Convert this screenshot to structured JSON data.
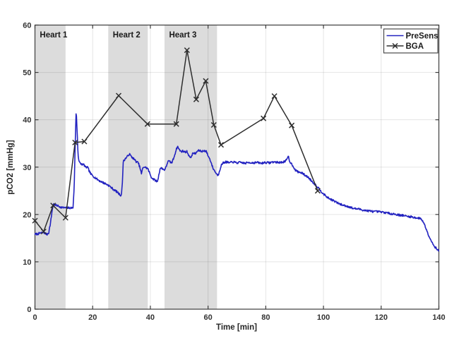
{
  "figure": {
    "background": "#ffffff"
  },
  "chart_data": {
    "type": "line",
    "title": "",
    "xlabel": "Time [min]",
    "ylabel": "pCO2 [mmHg]",
    "xlim": [
      0,
      140
    ],
    "ylim": [
      0,
      60
    ],
    "xticks": [
      0,
      20,
      40,
      60,
      80,
      100,
      120,
      140
    ],
    "yticks": [
      0,
      10,
      20,
      30,
      40,
      50,
      60
    ],
    "grid": true,
    "legend_position": "top-right",
    "band_color": "#dcdcdc",
    "grid_color": "rgba(0,0,0,0.10)",
    "axis_color": "#3c3c3c",
    "bands": [
      {
        "label": "Heart 1",
        "x_start": 0.1,
        "x_end": 10.6
      },
      {
        "label": "Heart 2",
        "x_start": 25.4,
        "x_end": 39.1
      },
      {
        "label": "Heart 3",
        "x_start": 44.9,
        "x_end": 63.1
      }
    ],
    "noise_amplitude": 0.22,
    "noise_seed": 7,
    "series": [
      {
        "name": "PreSens",
        "color": "#2222c0",
        "marker": "none",
        "style": "noisy-line",
        "points": [
          [
            0,
            15.8
          ],
          [
            1,
            15.9
          ],
          [
            2,
            16.1
          ],
          [
            3,
            16.2
          ],
          [
            3.6,
            16.0
          ],
          [
            4.2,
            15.8
          ],
          [
            4.8,
            16.2
          ],
          [
            5.4,
            18.3
          ],
          [
            6.0,
            21.0
          ],
          [
            6.4,
            22.2
          ],
          [
            6.9,
            22.0
          ],
          [
            7.6,
            21.9
          ],
          [
            8.4,
            21.7
          ],
          [
            9.2,
            21.5
          ],
          [
            10.2,
            21.4
          ],
          [
            11.2,
            21.4
          ],
          [
            12.2,
            21.4
          ],
          [
            13.2,
            21.4
          ],
          [
            13.6,
            26.0
          ],
          [
            14.0,
            36.0
          ],
          [
            14.3,
            42.2
          ],
          [
            14.6,
            38.0
          ],
          [
            14.9,
            33.0
          ],
          [
            15.2,
            31.4
          ],
          [
            15.6,
            30.8
          ],
          [
            16.2,
            30.6
          ],
          [
            17.0,
            30.5
          ],
          [
            17.6,
            29.9
          ],
          [
            18.2,
            30.0
          ],
          [
            18.8,
            29.2
          ],
          [
            19.4,
            28.5
          ],
          [
            20.0,
            28.2
          ],
          [
            20.6,
            27.9
          ],
          [
            21.4,
            27.5
          ],
          [
            22.4,
            27.1
          ],
          [
            23.4,
            26.8
          ],
          [
            24.4,
            26.5
          ],
          [
            25.4,
            26.2
          ],
          [
            26.4,
            25.7
          ],
          [
            27.4,
            25.2
          ],
          [
            28.4,
            24.8
          ],
          [
            29.2,
            24.3
          ],
          [
            29.9,
            24.0
          ],
          [
            30.3,
            26.5
          ],
          [
            30.6,
            31.2
          ],
          [
            31.2,
            31.7
          ],
          [
            32.0,
            32.2
          ],
          [
            32.7,
            32.8
          ],
          [
            33.4,
            32.2
          ],
          [
            34.2,
            31.8
          ],
          [
            35.0,
            31.2
          ],
          [
            35.8,
            30.9
          ],
          [
            36.4,
            29.9
          ],
          [
            36.9,
            28.6
          ],
          [
            37.3,
            29.6
          ],
          [
            37.7,
            30.1
          ],
          [
            38.4,
            29.9
          ],
          [
            39.1,
            29.7
          ],
          [
            39.7,
            28.8
          ],
          [
            40.4,
            27.8
          ],
          [
            41.2,
            27.4
          ],
          [
            42.0,
            27.1
          ],
          [
            42.4,
            26.9
          ],
          [
            42.9,
            28.2
          ],
          [
            43.4,
            29.8
          ],
          [
            44.2,
            29.7
          ],
          [
            44.8,
            29.4
          ],
          [
            45.4,
            29.9
          ],
          [
            46.1,
            31.3
          ],
          [
            46.8,
            31.1
          ],
          [
            47.4,
            30.9
          ],
          [
            48.1,
            31.9
          ],
          [
            48.8,
            33.4
          ],
          [
            49.4,
            34.4
          ],
          [
            50.0,
            33.7
          ],
          [
            50.6,
            33.3
          ],
          [
            51.3,
            33.4
          ],
          [
            52.0,
            33.2
          ],
          [
            52.7,
            33.3
          ],
          [
            53.4,
            32.4
          ],
          [
            53.9,
            31.9
          ],
          [
            54.5,
            32.7
          ],
          [
            55.0,
            33.0
          ],
          [
            55.6,
            32.8
          ],
          [
            56.3,
            33.4
          ],
          [
            57.0,
            33.5
          ],
          [
            57.8,
            33.3
          ],
          [
            58.6,
            33.5
          ],
          [
            59.4,
            33.3
          ],
          [
            60.1,
            32.3
          ],
          [
            60.9,
            31.3
          ],
          [
            61.6,
            29.9
          ],
          [
            62.3,
            29.2
          ],
          [
            63.0,
            28.5
          ],
          [
            63.5,
            28.3
          ],
          [
            63.9,
            29.1
          ],
          [
            64.5,
            30.3
          ],
          [
            65.2,
            30.9
          ],
          [
            66.2,
            31.1
          ],
          [
            67.4,
            30.9
          ],
          [
            68.6,
            31.1
          ],
          [
            70.0,
            30.9
          ],
          [
            71.4,
            31.0
          ],
          [
            72.8,
            30.8
          ],
          [
            74.2,
            31.0
          ],
          [
            75.6,
            30.9
          ],
          [
            77.0,
            31.0
          ],
          [
            78.4,
            30.8
          ],
          [
            79.8,
            31.0
          ],
          [
            81.2,
            30.9
          ],
          [
            82.6,
            31.1
          ],
          [
            84.0,
            31.0
          ],
          [
            85.4,
            31.0
          ],
          [
            86.6,
            31.2
          ],
          [
            87.4,
            31.6
          ],
          [
            87.8,
            32.4
          ],
          [
            88.2,
            31.3
          ],
          [
            88.8,
            30.8
          ],
          [
            89.5,
            30.2
          ],
          [
            90.3,
            29.3
          ],
          [
            91.2,
            29.0
          ],
          [
            92.4,
            28.8
          ],
          [
            93.6,
            28.3
          ],
          [
            94.8,
            27.8
          ],
          [
            96.0,
            27.0
          ],
          [
            97.0,
            26.4
          ],
          [
            98.0,
            25.8
          ],
          [
            99.2,
            24.9
          ],
          [
            100.4,
            24.1
          ],
          [
            101.6,
            23.5
          ],
          [
            102.9,
            23.1
          ],
          [
            104.1,
            22.7
          ],
          [
            105.3,
            22.3
          ],
          [
            106.6,
            22.0
          ],
          [
            107.8,
            21.8
          ],
          [
            109.0,
            21.6
          ],
          [
            110.2,
            21.3
          ],
          [
            111.5,
            21.2
          ],
          [
            112.7,
            21.1
          ],
          [
            114.0,
            20.9
          ],
          [
            115.1,
            20.8
          ],
          [
            116.4,
            20.7
          ],
          [
            117.6,
            20.6
          ],
          [
            118.8,
            20.6
          ],
          [
            120.0,
            20.5
          ],
          [
            121.5,
            20.4
          ],
          [
            123.0,
            20.2
          ],
          [
            124.5,
            20.1
          ],
          [
            126.0,
            19.9
          ],
          [
            127.5,
            19.8
          ],
          [
            129.0,
            19.6
          ],
          [
            130.5,
            19.5
          ],
          [
            132.0,
            19.3
          ],
          [
            133.2,
            19.2
          ],
          [
            133.9,
            19.1
          ],
          [
            134.6,
            18.4
          ],
          [
            135.4,
            17.3
          ],
          [
            136.2,
            16.0
          ],
          [
            137.0,
            14.9
          ],
          [
            137.8,
            13.9
          ],
          [
            138.6,
            13.2
          ],
          [
            139.3,
            12.7
          ],
          [
            140,
            12.3
          ]
        ]
      },
      {
        "name": "BGA",
        "color": "#2e2e2e",
        "marker": "x",
        "style": "line",
        "points": [
          [
            0,
            18.7
          ],
          [
            3,
            16.4
          ],
          [
            6.3,
            21.9
          ],
          [
            10.6,
            19.3
          ],
          [
            13.9,
            35.2
          ],
          [
            17.1,
            35.4
          ],
          [
            29,
            45.1
          ],
          [
            39,
            39.1
          ],
          [
            49,
            39.1
          ],
          [
            52.7,
            54.7
          ],
          [
            55.9,
            44.3
          ],
          [
            59.2,
            48.2
          ],
          [
            62,
            38.9
          ],
          [
            64.5,
            34.7
          ],
          [
            79.2,
            40.3
          ],
          [
            83,
            45.0
          ],
          [
            89,
            38.8
          ],
          [
            98,
            25.0
          ]
        ]
      }
    ]
  }
}
